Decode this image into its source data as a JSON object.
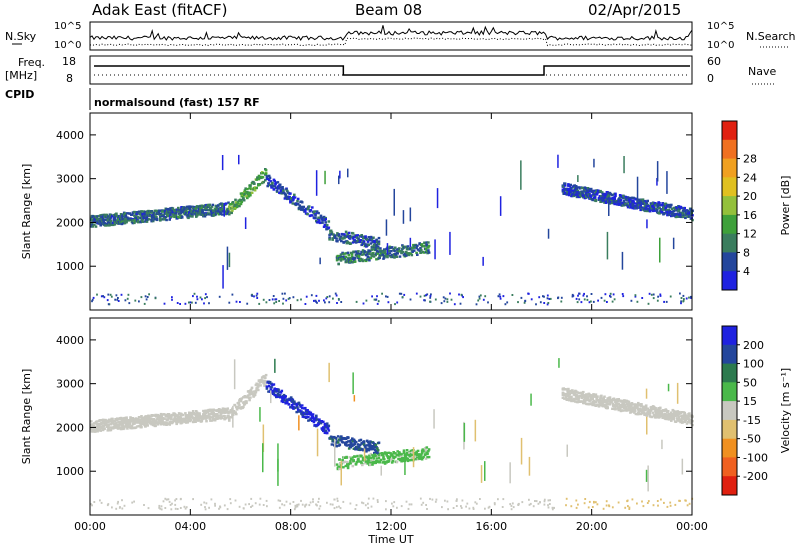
{
  "header": {
    "station": "Adak East (fitACF)",
    "beam": "Beam 08",
    "date": "02/Apr/2015"
  },
  "nsky_panel": {
    "left_label": "N.Sky",
    "right_label": "N.Search",
    "left_ticks": [
      "10^5",
      "10^0"
    ],
    "right_ticks": [
      "10^5",
      "10^0"
    ]
  },
  "freq_panel": {
    "left_label_1": "Freq.",
    "left_label_2": "[MHz]",
    "right_label": "Nave",
    "left_ticks": [
      "18",
      "8"
    ],
    "right_ticks": [
      "60",
      "0"
    ]
  },
  "cpid": {
    "label": "CPID",
    "value": "normalsound (fast) 157 RF"
  },
  "colors": {
    "power": [
      "#1f22e0",
      "#24469c",
      "#3a7d5e",
      "#3ea03a",
      "#93c03b",
      "#e0c020",
      "#f0a020",
      "#f07020",
      "#e02010"
    ],
    "velocity": [
      "#1f22e0",
      "#24469c",
      "#2c7a4e",
      "#4ab84a",
      "#c8c8c0",
      "#e0c070",
      "#f09020",
      "#f06020",
      "#e02010"
    ]
  },
  "chart_data": [
    {
      "type": "heatmap",
      "title": "",
      "xlabel": "",
      "ylabel": "Slant Range [km]",
      "x_ticks": [
        "00:00",
        "04:00",
        "08:00",
        "12:00",
        "16:00",
        "20:00",
        "00:00"
      ],
      "y_ticks": [
        "1000",
        "2000",
        "3000",
        "4000"
      ],
      "ylim": [
        0,
        4500
      ],
      "xlim_hours": [
        0,
        24
      ],
      "colorbar": {
        "label": "Power [dB]",
        "ticks": [
          "4",
          "8",
          "12",
          "16",
          "20",
          "24",
          "28"
        ],
        "range": [
          0,
          32
        ]
      },
      "echo_bands": [
        {
          "t_start": 0.0,
          "t_end": 5.5,
          "range_start_km": 2050,
          "range_end_km": 2350,
          "typical_power_db": 7
        },
        {
          "t_start": 5.5,
          "t_end": 7.0,
          "range_start_km": 2300,
          "range_end_km": 3150,
          "typical_power_db": 12
        },
        {
          "t_start": 7.0,
          "t_end": 9.5,
          "range_start_km": 3000,
          "range_end_km": 1950,
          "typical_power_db": 4
        },
        {
          "t_start": 9.5,
          "t_end": 11.5,
          "range_start_km": 1750,
          "range_end_km": 1550,
          "typical_power_db": 6
        },
        {
          "t_start": 9.8,
          "t_end": 13.5,
          "range_start_km": 1200,
          "range_end_km": 1450,
          "typical_power_db": 8
        },
        {
          "t_start": 18.8,
          "t_end": 24.0,
          "range_start_km": 2800,
          "range_end_km": 2200,
          "typical_power_db": 5
        }
      ]
    },
    {
      "type": "heatmap",
      "title": "",
      "xlabel": "Time UT",
      "ylabel": "Slant Range [km]",
      "x_ticks": [
        "00:00",
        "04:00",
        "08:00",
        "12:00",
        "16:00",
        "20:00",
        "00:00"
      ],
      "y_ticks": [
        "1000",
        "2000",
        "3000",
        "4000"
      ],
      "ylim": [
        0,
        4500
      ],
      "xlim_hours": [
        0,
        24
      ],
      "colorbar": {
        "label": "Velocity [m s⁻¹]",
        "ticks": [
          "200",
          "100",
          "50",
          "15",
          "-15",
          "-50",
          "-100",
          "-200"
        ],
        "range": [
          -250,
          250
        ]
      },
      "echo_bands": [
        {
          "t_start": 0.0,
          "t_end": 5.5,
          "range_start_km": 2050,
          "range_end_km": 2350,
          "typical_velocity": 0
        },
        {
          "t_start": 5.5,
          "t_end": 7.0,
          "range_start_km": 2300,
          "range_end_km": 3150,
          "typical_velocity": 0
        },
        {
          "t_start": 7.0,
          "t_end": 9.5,
          "range_start_km": 3000,
          "range_end_km": 1950,
          "typical_velocity": 200
        },
        {
          "t_start": 9.5,
          "t_end": 11.5,
          "range_start_km": 1750,
          "range_end_km": 1550,
          "typical_velocity": 150
        },
        {
          "t_start": 9.8,
          "t_end": 13.5,
          "range_start_km": 1200,
          "range_end_km": 1450,
          "typical_velocity": 40
        },
        {
          "t_start": 18.8,
          "t_end": 24.0,
          "range_start_km": 2800,
          "range_end_km": 2200,
          "typical_velocity": 0
        }
      ]
    }
  ]
}
